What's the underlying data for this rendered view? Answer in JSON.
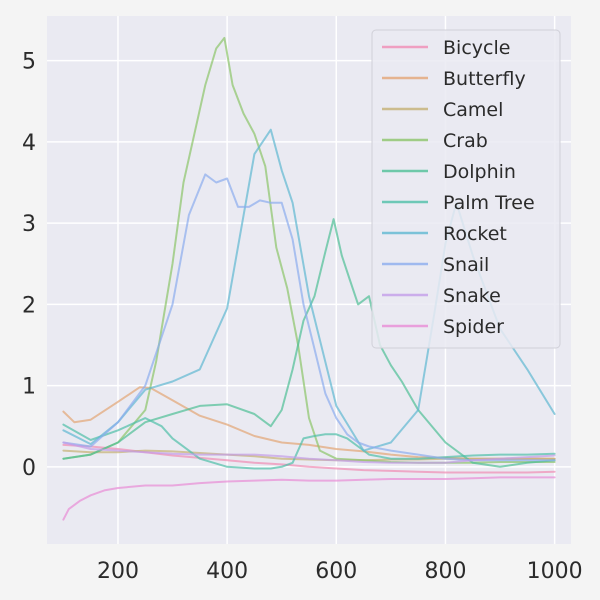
{
  "chart_data": {
    "type": "line",
    "title": "",
    "xlabel": "",
    "ylabel": "",
    "xlim": [
      70,
      1030
    ],
    "ylim": [
      -0.95,
      5.55
    ],
    "xticks": [
      200,
      400,
      600,
      800,
      1000
    ],
    "yticks": [
      0,
      1,
      2,
      3,
      4,
      5
    ],
    "grid": true,
    "legend": "top-right",
    "background": "#eaeaf2",
    "series": [
      {
        "name": "Bicycle",
        "color": "#f08cb4",
        "x": [
          100,
          150,
          200,
          250,
          300,
          350,
          400,
          450,
          500,
          550,
          600,
          650,
          700,
          750,
          800,
          850,
          900,
          950,
          1000
        ],
        "y": [
          0.27,
          0.25,
          0.22,
          0.18,
          0.14,
          0.11,
          0.08,
          0.05,
          0.03,
          0.0,
          -0.02,
          -0.04,
          -0.05,
          -0.06,
          -0.07,
          -0.07,
          -0.07,
          -0.07,
          -0.06
        ]
      },
      {
        "name": "Butterfly",
        "color": "#e3a575",
        "x": [
          100,
          120,
          150,
          200,
          240,
          260,
          300,
          350,
          400,
          450,
          500,
          550,
          600,
          650,
          700,
          750,
          800,
          850,
          900,
          950,
          1000
        ],
        "y": [
          0.68,
          0.55,
          0.58,
          0.8,
          0.98,
          0.97,
          0.82,
          0.63,
          0.52,
          0.38,
          0.3,
          0.27,
          0.22,
          0.19,
          0.15,
          0.12,
          0.11,
          0.1,
          0.1,
          0.1,
          0.1
        ]
      },
      {
        "name": "Camel",
        "color": "#c4b074",
        "x": [
          100,
          150,
          200,
          250,
          300,
          350,
          400,
          450,
          500,
          550,
          600,
          650,
          700,
          750,
          800,
          850,
          900,
          950,
          1000
        ],
        "y": [
          0.2,
          0.18,
          0.18,
          0.2,
          0.19,
          0.17,
          0.15,
          0.13,
          0.1,
          0.09,
          0.08,
          0.08,
          0.09,
          0.09,
          0.1,
          0.1,
          0.1,
          0.1,
          0.1
        ]
      },
      {
        "name": "Crab",
        "color": "#8cc46a",
        "x": [
          100,
          150,
          200,
          250,
          270,
          300,
          320,
          340,
          360,
          380,
          395,
          410,
          430,
          450,
          470,
          490,
          510,
          530,
          550,
          570,
          600,
          650,
          700,
          750,
          800,
          850,
          900,
          950,
          1000
        ],
        "y": [
          0.1,
          0.15,
          0.3,
          0.7,
          1.3,
          2.5,
          3.5,
          4.1,
          4.7,
          5.15,
          5.28,
          4.7,
          4.35,
          4.1,
          3.7,
          2.7,
          2.2,
          1.5,
          0.6,
          0.2,
          0.1,
          0.08,
          0.06,
          0.05,
          0.05,
          0.05,
          0.06,
          0.06,
          0.06
        ]
      },
      {
        "name": "Dolphin",
        "color": "#4fbf96",
        "x": [
          100,
          150,
          200,
          250,
          300,
          350,
          400,
          450,
          480,
          500,
          520,
          540,
          560,
          580,
          595,
          610,
          625,
          640,
          660,
          680,
          700,
          720,
          750,
          800,
          850,
          900,
          950,
          1000
        ],
        "y": [
          0.1,
          0.15,
          0.3,
          0.55,
          0.65,
          0.75,
          0.77,
          0.65,
          0.5,
          0.7,
          1.2,
          1.8,
          2.1,
          2.65,
          3.05,
          2.6,
          2.3,
          2.0,
          2.1,
          1.5,
          1.25,
          1.05,
          0.7,
          0.3,
          0.05,
          0.0,
          0.05,
          0.08
        ]
      },
      {
        "name": "Palm Tree",
        "color": "#4fbfa8",
        "x": [
          100,
          150,
          200,
          250,
          280,
          300,
          350,
          400,
          450,
          480,
          500,
          520,
          540,
          560,
          580,
          600,
          620,
          640,
          660,
          700,
          750,
          800,
          850,
          900,
          950,
          1000
        ],
        "y": [
          0.52,
          0.33,
          0.45,
          0.6,
          0.5,
          0.35,
          0.1,
          0.0,
          -0.02,
          -0.02,
          0.0,
          0.05,
          0.35,
          0.38,
          0.4,
          0.4,
          0.35,
          0.25,
          0.15,
          0.1,
          0.1,
          0.12,
          0.14,
          0.15,
          0.15,
          0.16
        ]
      },
      {
        "name": "Rocket",
        "color": "#5fb8d1",
        "x": [
          100,
          150,
          200,
          250,
          300,
          350,
          400,
          450,
          480,
          500,
          520,
          550,
          600,
          650,
          700,
          750,
          780,
          800,
          820,
          850,
          900,
          950,
          1000
        ],
        "y": [
          0.45,
          0.28,
          0.55,
          0.95,
          1.05,
          1.2,
          1.95,
          3.85,
          4.15,
          3.65,
          3.25,
          2.1,
          0.75,
          0.2,
          0.3,
          0.7,
          1.9,
          2.75,
          3.25,
          2.6,
          1.7,
          1.2,
          0.65
        ]
      },
      {
        "name": "Snail",
        "color": "#8cacee",
        "x": [
          100,
          150,
          200,
          250,
          300,
          330,
          360,
          380,
          400,
          420,
          440,
          460,
          480,
          500,
          520,
          540,
          560,
          580,
          600,
          620,
          640,
          660,
          700,
          750,
          800,
          850,
          900,
          950,
          1000
        ],
        "y": [
          0.3,
          0.25,
          0.55,
          1.0,
          2.0,
          3.1,
          3.6,
          3.5,
          3.55,
          3.2,
          3.2,
          3.28,
          3.25,
          3.25,
          2.8,
          2.0,
          1.45,
          0.9,
          0.6,
          0.4,
          0.3,
          0.25,
          0.2,
          0.15,
          0.1,
          0.08,
          0.08,
          0.08,
          0.08
        ]
      },
      {
        "name": "Snake",
        "color": "#c39de8",
        "x": [
          100,
          150,
          200,
          250,
          300,
          350,
          400,
          450,
          500,
          550,
          600,
          650,
          700,
          750,
          800,
          850,
          900,
          950,
          1000
        ],
        "y": [
          0.3,
          0.22,
          0.2,
          0.18,
          0.16,
          0.15,
          0.15,
          0.15,
          0.13,
          0.1,
          0.08,
          0.06,
          0.05,
          0.05,
          0.05,
          0.08,
          0.1,
          0.12,
          0.14
        ]
      },
      {
        "name": "Spider",
        "color": "#e88cd6",
        "x": [
          100,
          110,
          130,
          150,
          175,
          200,
          250,
          300,
          350,
          400,
          450,
          500,
          550,
          600,
          650,
          700,
          750,
          800,
          850,
          900,
          950,
          1000
        ],
        "y": [
          -0.65,
          -0.52,
          -0.42,
          -0.35,
          -0.29,
          -0.26,
          -0.23,
          -0.23,
          -0.2,
          -0.18,
          -0.17,
          -0.16,
          -0.17,
          -0.17,
          -0.16,
          -0.15,
          -0.15,
          -0.15,
          -0.14,
          -0.13,
          -0.13,
          -0.13
        ]
      }
    ]
  }
}
